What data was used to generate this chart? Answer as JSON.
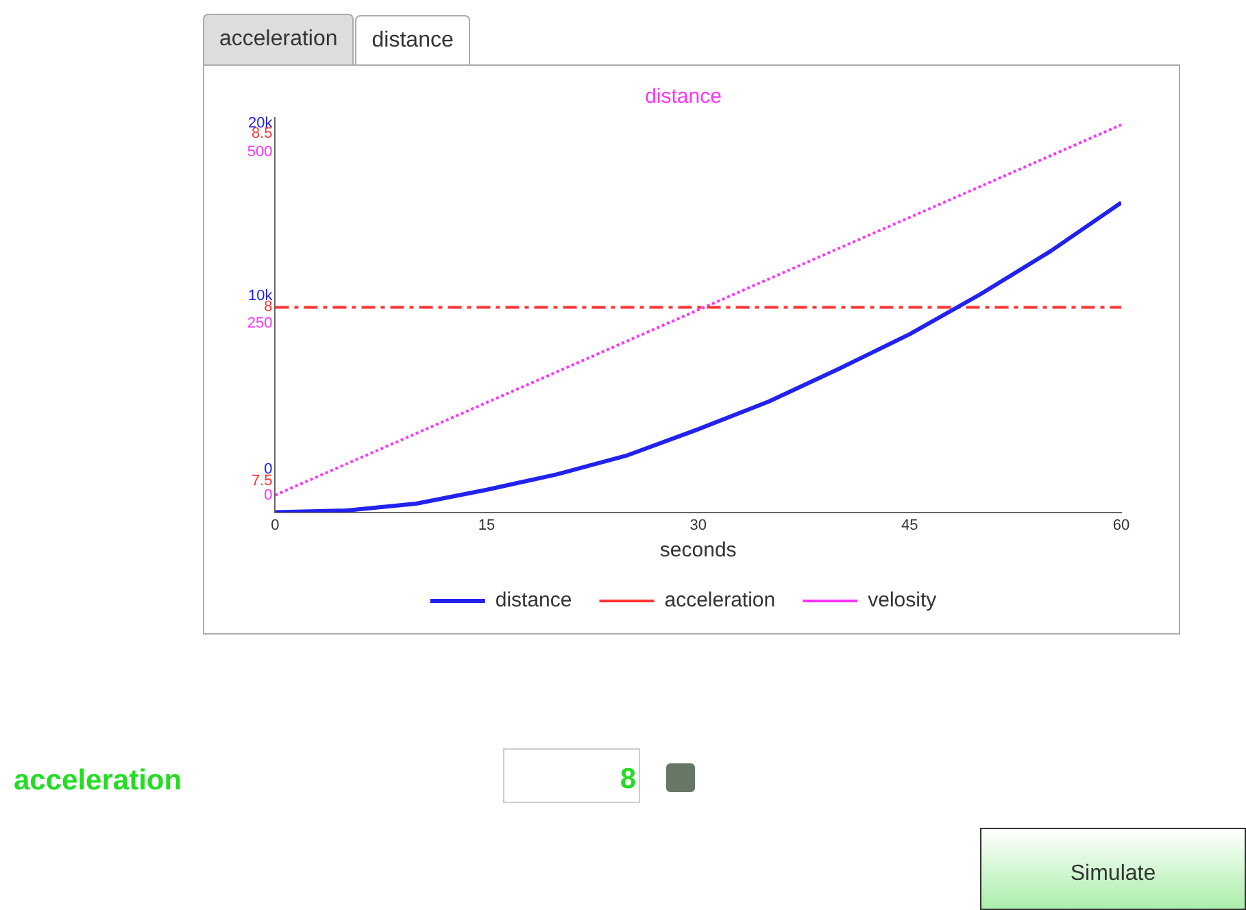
{
  "chart_data": {
    "type": "line",
    "title": "distance",
    "xlabel": "seconds",
    "x": [
      0,
      5,
      10,
      15,
      20,
      25,
      30,
      35,
      40,
      45,
      50,
      55,
      60
    ],
    "xlim": [
      0,
      60
    ],
    "xticks": [
      0,
      15,
      30,
      45,
      60
    ],
    "ylim": [
      -2500,
      20300
    ],
    "yticks": [
      0,
      {
        "value": 10000,
        "label": "10k"
      },
      {
        "value": 20000,
        "label": "20k"
      }
    ],
    "y2lim": [
      7.41,
      8.545
    ],
    "y2ticks": [
      7.5,
      8,
      8.5
    ],
    "y3lim": [
      -25,
      550
    ],
    "y3ticks": [
      0,
      250,
      500
    ],
    "series": [
      {
        "name": "distance",
        "color": "#2222ee",
        "line_style": "solid",
        "values": [
          -2500,
          -2400,
          -2000,
          -1200,
          -300,
          800,
          2300,
          3900,
          5800,
          7800,
          10100,
          12600,
          15400
        ]
      },
      {
        "name": "acceleration",
        "color": "#ff3333",
        "line_style": "dashed",
        "axis": "y2",
        "values": [
          8,
          8,
          8,
          8,
          8,
          8,
          8,
          8,
          8,
          8,
          8,
          8,
          8
        ]
      },
      {
        "name": "velosity",
        "color": "#ff33ff",
        "line_style": "dotted",
        "axis": "y3",
        "values": [
          0,
          45,
          90,
          135,
          180,
          225,
          270,
          315,
          360,
          405,
          450,
          495,
          540
        ]
      }
    ],
    "grid": false,
    "legend": "bottom",
    "marker": "none",
    "annotations": [
      "acceleration",
      "distance",
      "acceleration",
      "8",
      "Simulate"
    ]
  }
}
